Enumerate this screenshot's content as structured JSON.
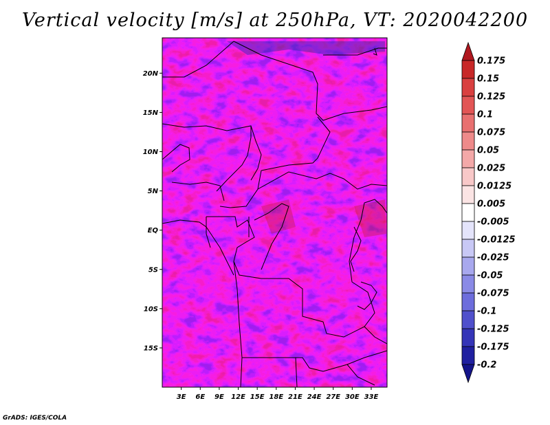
{
  "title": "Vertical velocity [m/s] at 250hPa, VT: 2020042200",
  "credit": "GrADS: IGES/COLA",
  "map": {
    "lat_range": [
      -20,
      24.5
    ],
    "lon_range": [
      0,
      35.5
    ],
    "lat_labels": [
      "20N",
      "15N",
      "10N",
      "5N",
      "EQ",
      "5S",
      "10S",
      "15S"
    ],
    "lat_values": [
      20,
      15,
      10,
      5,
      0,
      -5,
      -10,
      -15
    ],
    "lon_labels": [
      "3E",
      "6E",
      "9E",
      "12E",
      "15E",
      "18E",
      "21E",
      "24E",
      "27E",
      "30E",
      "33E"
    ],
    "lon_values": [
      3,
      6,
      9,
      12,
      15,
      18,
      21,
      24,
      27,
      30,
      33
    ]
  },
  "colorbar": {
    "labels": [
      "0.175",
      "0.15",
      "0.125",
      "0.1",
      "0.075",
      "0.05",
      "0.025",
      "0.0125",
      "0.005",
      "-0.005",
      "-0.0125",
      "-0.025",
      "-0.05",
      "-0.075",
      "-0.1",
      "-0.125",
      "-0.175",
      "-0.2"
    ],
    "colors": [
      "#b0171f",
      "#c82828",
      "#d94040",
      "#e25555",
      "#e87070",
      "#ee8a8a",
      "#f3a8a8",
      "#f8c8c8",
      "#fbe4e4",
      "#ffffff",
      "#e4e4fb",
      "#c8c8f5",
      "#a8a8ee",
      "#8a8ae6",
      "#6d6ddc",
      "#5050cc",
      "#3535b8",
      "#2020a0",
      "#14148a"
    ]
  },
  "colors": {
    "frame": "#000000",
    "border": "#000000"
  }
}
